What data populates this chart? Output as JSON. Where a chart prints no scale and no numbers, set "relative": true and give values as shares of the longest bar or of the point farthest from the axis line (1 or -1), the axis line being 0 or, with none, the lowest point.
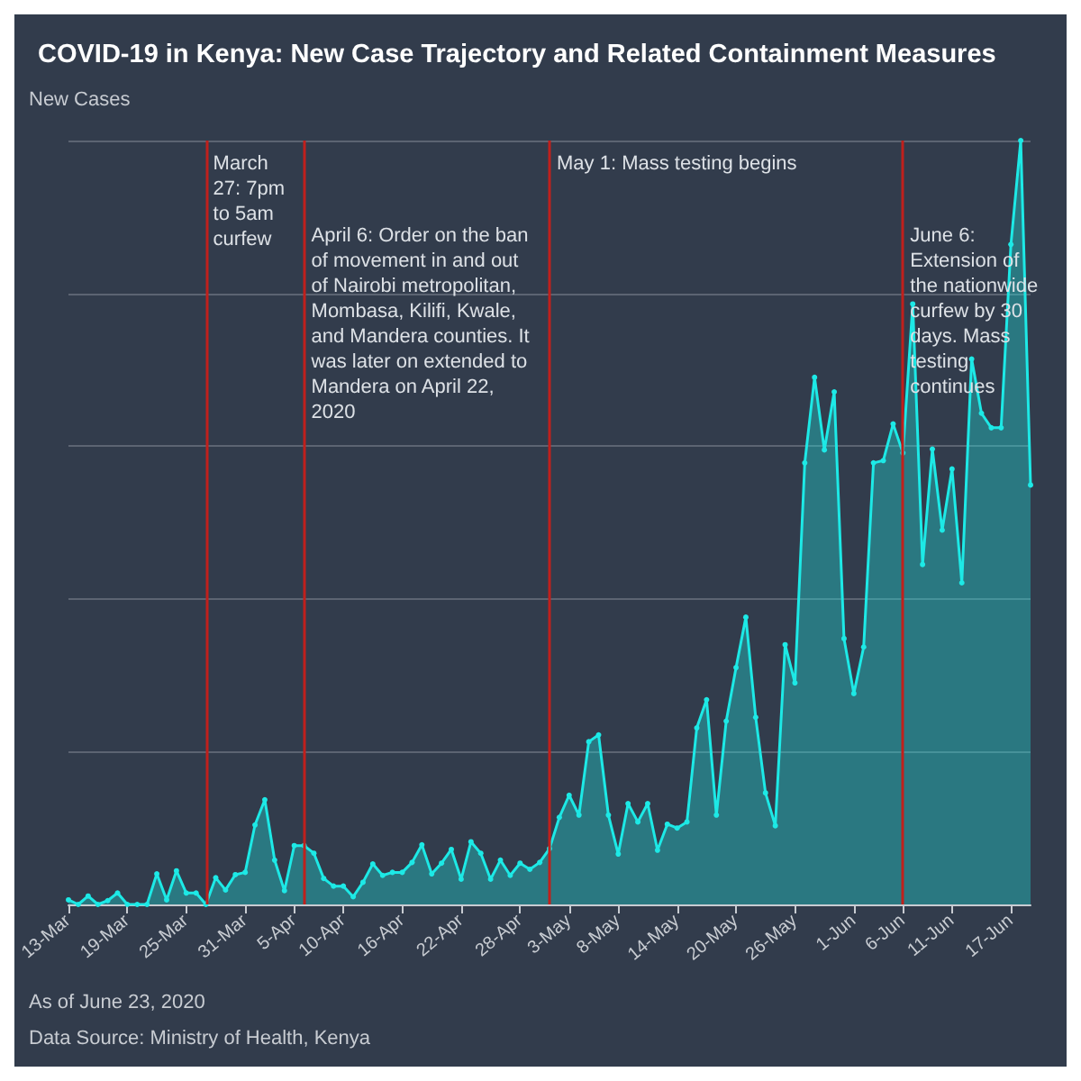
{
  "chart_data": {
    "type": "area",
    "title": "COVID-19 in Kenya: New Case Trajectory and Related Containment Measures",
    "ylabel": "New Cases",
    "relative": true,
    "grid": "y",
    "marker": "circle",
    "line_style": "solid",
    "tick_labels": "x",
    "x": [
      "2020-03-13",
      "2020-03-14",
      "2020-03-15",
      "2020-03-16",
      "2020-03-17",
      "2020-03-18",
      "2020-03-19",
      "2020-03-20",
      "2020-03-21",
      "2020-03-22",
      "2020-03-23",
      "2020-03-24",
      "2020-03-25",
      "2020-03-26",
      "2020-03-27",
      "2020-03-28",
      "2020-03-29",
      "2020-03-30",
      "2020-03-31",
      "2020-04-01",
      "2020-04-02",
      "2020-04-03",
      "2020-04-04",
      "2020-04-05",
      "2020-04-06",
      "2020-04-07",
      "2020-04-08",
      "2020-04-09",
      "2020-04-10",
      "2020-04-11",
      "2020-04-12",
      "2020-04-13",
      "2020-04-14",
      "2020-04-15",
      "2020-04-16",
      "2020-04-17",
      "2020-04-18",
      "2020-04-19",
      "2020-04-20",
      "2020-04-21",
      "2020-04-22",
      "2020-04-23",
      "2020-04-24",
      "2020-04-25",
      "2020-04-26",
      "2020-04-27",
      "2020-04-28",
      "2020-04-29",
      "2020-04-30",
      "2020-05-01",
      "2020-05-02",
      "2020-05-03",
      "2020-05-04",
      "2020-05-05",
      "2020-05-06",
      "2020-05-07",
      "2020-05-08",
      "2020-05-09",
      "2020-05-10",
      "2020-05-11",
      "2020-05-12",
      "2020-05-13",
      "2020-05-14",
      "2020-05-15",
      "2020-05-16",
      "2020-05-17",
      "2020-05-18",
      "2020-05-19",
      "2020-05-20",
      "2020-05-21",
      "2020-05-22",
      "2020-05-23",
      "2020-05-24",
      "2020-05-25",
      "2020-05-26",
      "2020-05-27",
      "2020-05-28",
      "2020-05-29",
      "2020-05-30",
      "2020-05-31",
      "2020-06-01",
      "2020-06-02",
      "2020-06-03",
      "2020-06-04",
      "2020-06-05",
      "2020-06-06",
      "2020-06-07",
      "2020-06-08",
      "2020-06-09",
      "2020-06-10",
      "2020-06-11",
      "2020-06-12",
      "2020-06-13",
      "2020-06-14",
      "2020-06-15",
      "2020-06-16",
      "2020-06-17",
      "2020-06-18",
      "2020-06-19"
    ],
    "xlim": [
      "2020-03-13",
      "2020-06-19"
    ],
    "xticks": [
      {
        "value": "2020-03-13",
        "label": "13-Mar"
      },
      {
        "value": "2020-03-19",
        "label": "19-Mar"
      },
      {
        "value": "2020-03-25",
        "label": "25-Mar"
      },
      {
        "value": "2020-03-31",
        "label": "31-Mar"
      },
      {
        "value": "2020-04-05",
        "label": "5-Apr"
      },
      {
        "value": "2020-04-10",
        "label": "10-Apr"
      },
      {
        "value": "2020-04-16",
        "label": "16-Apr"
      },
      {
        "value": "2020-04-22",
        "label": "22-Apr"
      },
      {
        "value": "2020-04-28",
        "label": "28-Apr"
      },
      {
        "value": "2020-05-03",
        "label": "3-May"
      },
      {
        "value": "2020-05-08",
        "label": "8-May"
      },
      {
        "value": "2020-05-14",
        "label": "14-May"
      },
      {
        "value": "2020-05-20",
        "label": "20-May"
      },
      {
        "value": "2020-05-26",
        "label": "26-May"
      },
      {
        "value": "2020-06-01",
        "label": "1-Jun"
      },
      {
        "value": "2020-06-06",
        "label": "6-Jun"
      },
      {
        "value": "2020-06-11",
        "label": "11-Jun"
      },
      {
        "value": "2020-06-17",
        "label": "17-Jun"
      }
    ],
    "series": [
      {
        "color": "#1de9e6",
        "values": [
          0.006,
          0,
          0.011,
          0,
          0.005,
          0.015,
          0,
          0,
          0,
          0.04,
          0.006,
          0.044,
          0.015,
          0.015,
          0,
          0.035,
          0.019,
          0.039,
          0.042,
          0.104,
          0.137,
          0.058,
          0.018,
          0.077,
          0.077,
          0.067,
          0.034,
          0.024,
          0.024,
          0.01,
          0.029,
          0.053,
          0.038,
          0.042,
          0.042,
          0.055,
          0.078,
          0.04,
          0.054,
          0.072,
          0.033,
          0.082,
          0.067,
          0.033,
          0.058,
          0.038,
          0.054,
          0.046,
          0.055,
          0.073,
          0.114,
          0.143,
          0.117,
          0.213,
          0.222,
          0.117,
          0.066,
          0.132,
          0.108,
          0.132,
          0.071,
          0.105,
          0.1,
          0.108,
          0.231,
          0.268,
          0.117,
          0.24,
          0.31,
          0.376,
          0.245,
          0.146,
          0.103,
          0.34,
          0.29,
          0.578,
          0.69,
          0.595,
          0.671,
          0.348,
          0.276,
          0.337,
          0.578,
          0.581,
          0.629,
          0.591,
          0.786,
          0.445,
          0.596,
          0.49,
          0.57,
          0.421,
          0.714,
          0.643,
          0.624,
          0.624,
          0.864,
          1,
          0.549
        ]
      }
    ],
    "ref_lines": [
      {
        "axis": "x",
        "value": "2020-03-27",
        "label": "March 27: 7pm to 5am curfew",
        "color": "#c0201c"
      },
      {
        "axis": "x",
        "value": "2020-04-06",
        "label": "April 6: Order on the ban of movement in and out of Nairobi metropolitan, Mombasa, Kilifi, Kwale, and Mandera counties. It was later on extended to Mandera on April 22, 2020",
        "color": "#c0201c"
      },
      {
        "axis": "x",
        "value": "2020-05-01",
        "label": "May 1: Mass testing begins",
        "color": "#c0201c"
      },
      {
        "axis": "x",
        "value": "2020-06-06",
        "label": "June 6: Extension of the nationwide curfew by 30 days. Mass testing continues",
        "color": "#c0201c"
      }
    ],
    "annotations": [
      "As of June 23, 2020",
      "Data Source: Ministry of Health, Kenya"
    ]
  }
}
